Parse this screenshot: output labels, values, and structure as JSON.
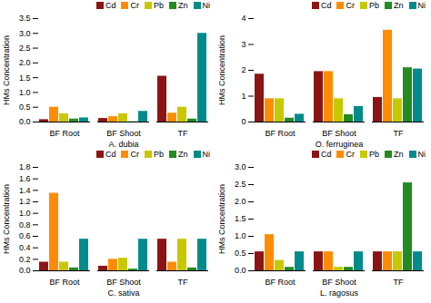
{
  "chart_data": [
    {
      "type": "bar",
      "xlabel": "A. dubia",
      "ylabel": "HMs Concentration",
      "categories": [
        "BF Root",
        "BF Shoot",
        "TF"
      ],
      "series": [
        {
          "name": "Cd",
          "color": "#8B1414",
          "values": [
            0.08,
            0.12,
            1.55
          ]
        },
        {
          "name": "Cr",
          "color": "#FF8C00",
          "values": [
            0.5,
            0.18,
            0.3
          ]
        },
        {
          "name": "Pb",
          "color": "#C8C800",
          "values": [
            0.28,
            0.28,
            0.5
          ]
        },
        {
          "name": "Zn",
          "color": "#228B22",
          "values": [
            0.1,
            0.01,
            0.1
          ]
        },
        {
          "name": "Ni",
          "color": "#008B8B",
          "values": [
            0.14,
            0.36,
            3.0
          ]
        }
      ],
      "ylim": [
        0,
        3.5
      ],
      "yticks": [
        {
          "value": 0,
          "label": "0.0"
        },
        0.5,
        {
          "value": 1,
          "label": "1.0"
        },
        1.5,
        {
          "value": 2,
          "label": "2.0"
        },
        2.5,
        {
          "value": 3,
          "label": "3.0"
        },
        3.5
      ],
      "legend": "upper right"
    },
    {
      "type": "bar",
      "xlabel": "O. ferruginea",
      "ylabel": "HMs Concentration",
      "categories": [
        "BF Root",
        "BF Shoot",
        "TF"
      ],
      "series": [
        {
          "name": "Cd",
          "color": "#8B1414",
          "values": [
            1.85,
            1.95,
            0.95
          ]
        },
        {
          "name": "Cr",
          "color": "#FF8C00",
          "values": [
            0.9,
            1.95,
            3.55
          ]
        },
        {
          "name": "Pb",
          "color": "#C8C800",
          "values": [
            0.9,
            0.9,
            0.9
          ]
        },
        {
          "name": "Zn",
          "color": "#228B22",
          "values": [
            0.15,
            0.28,
            2.1
          ]
        },
        {
          "name": "Ni",
          "color": "#008B8B",
          "values": [
            0.3,
            0.6,
            2.05
          ]
        }
      ],
      "ylim": [
        0,
        4
      ],
      "yticks": [
        0,
        1,
        2,
        3,
        4
      ],
      "legend": "upper right"
    },
    {
      "type": "bar",
      "xlabel": "C. sativa",
      "ylabel": "HMs Concentration",
      "categories": [
        "BF Root",
        "BF Shoot",
        "TF"
      ],
      "series": [
        {
          "name": "Cd",
          "color": "#8B1414",
          "values": [
            0.15,
            0.08,
            0.55
          ]
        },
        {
          "name": "Cr",
          "color": "#FF8C00",
          "values": [
            1.35,
            0.2,
            0.15
          ]
        },
        {
          "name": "Pb",
          "color": "#C8C800",
          "values": [
            0.15,
            0.22,
            0.55
          ]
        },
        {
          "name": "Zn",
          "color": "#228B22",
          "values": [
            0.05,
            0.03,
            0.05
          ]
        },
        {
          "name": "Ni",
          "color": "#008B8B",
          "values": [
            0.55,
            0.55,
            0.55
          ]
        }
      ],
      "ylim": [
        0,
        1.8
      ],
      "yticks": [
        {
          "value": 0,
          "label": "0.0"
        },
        0.2,
        0.4,
        0.6,
        0.8,
        {
          "value": 1,
          "label": "1.0"
        },
        1.2,
        1.4,
        1.6,
        1.8
      ],
      "legend": "upper right"
    },
    {
      "type": "bar",
      "xlabel": "L. ragosus",
      "ylabel": "HMs Concentration",
      "categories": [
        "BF Root",
        "BF Shoot",
        "TF"
      ],
      "series": [
        {
          "name": "Cd",
          "color": "#8B1414",
          "values": [
            0.55,
            0.55,
            0.55
          ]
        },
        {
          "name": "Cr",
          "color": "#FF8C00",
          "values": [
            1.05,
            0.55,
            0.55
          ]
        },
        {
          "name": "Pb",
          "color": "#C8C800",
          "values": [
            0.3,
            0.1,
            0.55
          ]
        },
        {
          "name": "Zn",
          "color": "#228B22",
          "values": [
            0.1,
            0.1,
            2.55
          ]
        },
        {
          "name": "Ni",
          "color": "#008B8B",
          "values": [
            0.55,
            0.55,
            0.55
          ]
        }
      ],
      "ylim": [
        0,
        3.0
      ],
      "yticks": [
        {
          "value": 0,
          "label": "0.0"
        },
        0.5,
        {
          "value": 1,
          "label": "1.0"
        },
        1.5,
        {
          "value": 2,
          "label": "2.0"
        },
        2.5,
        {
          "value": 3,
          "label": "3.0"
        }
      ],
      "legend": "upper right"
    }
  ]
}
